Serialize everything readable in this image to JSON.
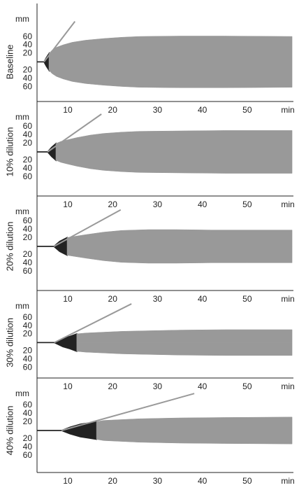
{
  "chart_data": [
    {
      "type": "teg",
      "label": "Baseline",
      "ylabel": "mm",
      "xlabel": "min",
      "xlim": [
        3.15,
        60.3
      ],
      "ylim": [
        -95,
        140
      ],
      "xticks": [
        10,
        20,
        30,
        40,
        50
      ],
      "yticks": [
        60,
        40,
        20,
        {
          "value": -20,
          "label": "20"
        },
        {
          "value": -40,
          "label": "40"
        },
        {
          "value": -60,
          "label": "60"
        }
      ],
      "series": [
        {
          "color": "#222222",
          "x": [
            3.2,
            4.7,
            5.2,
            5.8
          ],
          "values": [
            0,
            0,
            10,
            20
          ]
        },
        {
          "color": "#999999",
          "x": [
            5.8,
            6.5,
            7.5,
            9,
            11,
            14,
            18,
            22,
            26,
            35,
            45,
            60
          ],
          "values": [
            20,
            28,
            35,
            41,
            47,
            52,
            56,
            59,
            61,
            62,
            62,
            61
          ]
        }
      ],
      "angle_line": {
        "color": "#999999",
        "x": [
          4.7,
          11.6
        ],
        "values": [
          0,
          97
        ]
      }
    },
    {
      "type": "teg",
      "label": "10% dilution",
      "ylabel": "mm",
      "xlabel": "min",
      "xlim": [
        3.15,
        60.3
      ],
      "ylim": [
        -105,
        120
      ],
      "xticks": [
        10,
        20,
        30,
        40,
        50
      ],
      "yticks": [
        60,
        40,
        20,
        {
          "value": -20,
          "label": "20"
        },
        {
          "value": -40,
          "label": "40"
        },
        {
          "value": -60,
          "label": "60"
        }
      ],
      "series": [
        {
          "color": "#222222",
          "x": [
            3.2,
            5.5,
            6.4,
            7.35
          ],
          "values": [
            0,
            0,
            11,
            20
          ]
        },
        {
          "color": "#999999",
          "x": [
            7.35,
            8.5,
            10,
            12,
            15,
            18,
            22,
            26,
            35,
            45,
            60
          ],
          "values": [
            20,
            25,
            29,
            34,
            40,
            44,
            47,
            49,
            50,
            51,
            51
          ]
        }
      ],
      "angle_line": {
        "color": "#999999",
        "x": [
          5.5,
          17.5
        ],
        "values": [
          0,
          90
        ]
      }
    },
    {
      "type": "teg",
      "label": "20% dilution",
      "ylabel": "mm",
      "xlabel": "min",
      "xlim": [
        3.15,
        60.3
      ],
      "ylim": [
        -105,
        120
      ],
      "xticks": [
        10,
        20,
        30,
        40,
        50
      ],
      "yticks": [
        60,
        40,
        20,
        {
          "value": -20,
          "label": "20"
        },
        {
          "value": -40,
          "label": "40"
        },
        {
          "value": -60,
          "label": "60"
        }
      ],
      "series": [
        {
          "color": "#222222",
          "x": [
            3.2,
            6.9,
            8.2,
            9.85
          ],
          "values": [
            0,
            0,
            12,
            21
          ]
        },
        {
          "color": "#999999",
          "x": [
            9.85,
            11,
            14,
            18,
            22,
            28,
            34,
            42,
            50,
            60
          ],
          "values": [
            21,
            23,
            28,
            34,
            38,
            40,
            40,
            39,
            39,
            39
          ]
        }
      ],
      "angle_line": {
        "color": "#999999",
        "x": [
          6.9,
          21.8
        ],
        "values": [
          0,
          87
        ]
      }
    },
    {
      "type": "teg",
      "label": "30% dilution",
      "ylabel": "mm",
      "xlabel": "min",
      "xlim": [
        3.15,
        60.3
      ],
      "ylim": [
        -85,
        125
      ],
      "xticks": [
        10,
        20,
        30,
        40,
        50
      ],
      "yticks": [
        60,
        40,
        20,
        {
          "value": -20,
          "label": "20"
        },
        {
          "value": -40,
          "label": "40"
        },
        {
          "value": -60,
          "label": "60"
        }
      ],
      "series": [
        {
          "color": "#222222",
          "x": [
            3.2,
            7.0,
            8.9,
            10.5,
            12.0
          ],
          "values": [
            0,
            0,
            10,
            15,
            21
          ]
        },
        {
          "color": "#999999",
          "x": [
            12,
            14,
            18,
            22,
            26,
            35,
            45,
            60
          ],
          "values": [
            21,
            23,
            25,
            27,
            28,
            30,
            31,
            31
          ]
        }
      ],
      "angle_line": {
        "color": "#999999",
        "x": [
          7.0,
          24.2
        ],
        "values": [
          0,
          93
        ]
      }
    },
    {
      "type": "teg",
      "label": "40% dilution",
      "ylabel": "mm",
      "xlabel": "min",
      "xlim": [
        3.15,
        60.3
      ],
      "ylim": [
        -100,
        125
      ],
      "xticks": [
        10,
        20,
        30,
        40,
        50
      ],
      "yticks": [
        60,
        40,
        20,
        {
          "value": -20,
          "label": "20"
        },
        {
          "value": -40,
          "label": "40"
        },
        {
          "value": -60,
          "label": "60"
        }
      ],
      "series": [
        {
          "color": "#222222",
          "x": [
            3.2,
            8.6,
            10.5,
            12.8,
            15.2,
            16.4
          ],
          "values": [
            0,
            0,
            8,
            15,
            19,
            21
          ]
        },
        {
          "color": "#999999",
          "x": [
            16.4,
            18,
            22,
            26,
            35,
            45,
            60
          ],
          "values": [
            21,
            24,
            26,
            28,
            30,
            31,
            32
          ]
        }
      ],
      "angle_line": {
        "color": "#999999",
        "x": [
          8.6,
          38.2
        ],
        "values": [
          0,
          88
        ]
      }
    }
  ]
}
